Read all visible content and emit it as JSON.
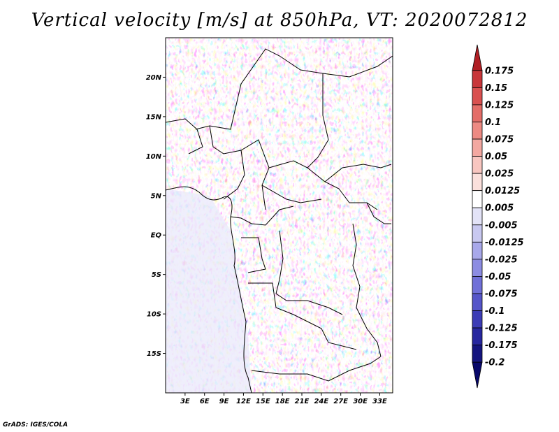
{
  "title": "Vertical velocity [m/s] at 850hPa, VT: 2020072812",
  "credit": "GrADS: IGES/COLA",
  "map": {
    "lon_range": [
      0,
      35
    ],
    "lat_range": [
      -20,
      25
    ],
    "lat_ticks": [
      {
        "value": 20,
        "label": "20N"
      },
      {
        "value": 15,
        "label": "15N"
      },
      {
        "value": 10,
        "label": "10N"
      },
      {
        "value": 5,
        "label": "5N"
      },
      {
        "value": 0,
        "label": "EQ"
      },
      {
        "value": -5,
        "label": "5S"
      },
      {
        "value": -10,
        "label": "10S"
      },
      {
        "value": -15,
        "label": "15S"
      }
    ],
    "lon_ticks": [
      {
        "value": 3,
        "label": "3E"
      },
      {
        "value": 6,
        "label": "6E"
      },
      {
        "value": 9,
        "label": "9E"
      },
      {
        "value": 12,
        "label": "12E"
      },
      {
        "value": 15,
        "label": "15E"
      },
      {
        "value": 18,
        "label": "18E"
      },
      {
        "value": 21,
        "label": "21E"
      },
      {
        "value": 24,
        "label": "24E"
      },
      {
        "value": 27,
        "label": "27E"
      },
      {
        "value": 30,
        "label": "30E"
      },
      {
        "value": 33,
        "label": "33E"
      }
    ]
  },
  "colorbar": {
    "labels": [
      "0.175",
      "0.15",
      "0.125",
      "0.1",
      "0.075",
      "0.05",
      "0.025",
      "0.0125",
      "0.005",
      "-0.005",
      "-0.0125",
      "-0.025",
      "-0.05",
      "-0.075",
      "-0.1",
      "-0.125",
      "-0.175",
      "-0.2"
    ],
    "colors": [
      "#b01e24",
      "#c8363a",
      "#d9504f",
      "#e46d68",
      "#ed8a83",
      "#f3a8a1",
      "#f8c6c0",
      "#fbe0dc",
      "#ffffff",
      "#e3e3f7",
      "#c8c8f0",
      "#a8a8ea",
      "#8c8ce2",
      "#7070d8",
      "#5555c9",
      "#3c3cb6",
      "#27279f",
      "#15157f",
      "#08086a"
    ]
  },
  "coastline_color": "#000000"
}
